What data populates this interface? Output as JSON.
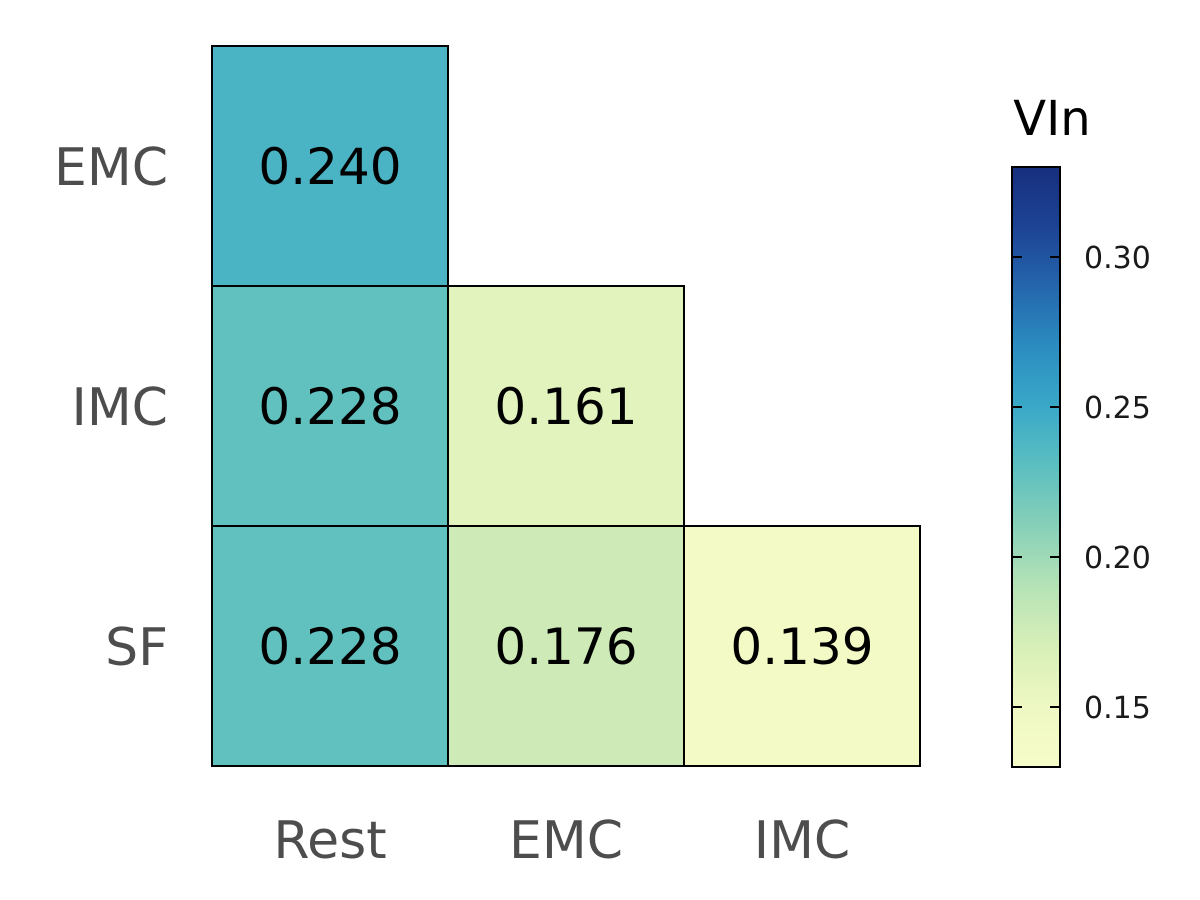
{
  "chart_data": {
    "type": "heatmap",
    "title": "",
    "xlabel": "",
    "ylabel": "",
    "x_categories": [
      "Rest",
      "EMC",
      "IMC"
    ],
    "y_categories": [
      "EMC",
      "IMC",
      "SF"
    ],
    "cells": [
      {
        "x": "Rest",
        "y": "EMC",
        "value": 0.24,
        "label": "0.240"
      },
      {
        "x": "Rest",
        "y": "IMC",
        "value": 0.228,
        "label": "0.228"
      },
      {
        "x": "EMC",
        "y": "IMC",
        "value": 0.161,
        "label": "0.161"
      },
      {
        "x": "Rest",
        "y": "SF",
        "value": 0.228,
        "label": "0.228"
      },
      {
        "x": "EMC",
        "y": "SF",
        "value": 0.176,
        "label": "0.176"
      },
      {
        "x": "IMC",
        "y": "SF",
        "value": 0.139,
        "label": "0.139"
      }
    ],
    "colorbar": {
      "title": "VIn",
      "range": [
        0.13,
        0.33
      ],
      "ticks": [
        0.15,
        0.2,
        0.25,
        0.3
      ],
      "tick_labels": [
        "0.15",
        "0.20",
        "0.25",
        "0.30"
      ],
      "palette": "YlGnBu",
      "stops": [
        "#f7fcc8",
        "#eef8c2",
        "#d8efb8",
        "#b6e3b6",
        "#88d0b8",
        "#5cbfc0",
        "#3aa8c8",
        "#2b8dc0",
        "#2566ad",
        "#1d4394",
        "#172f7e"
      ]
    },
    "legend_position": "right",
    "grid": false
  }
}
